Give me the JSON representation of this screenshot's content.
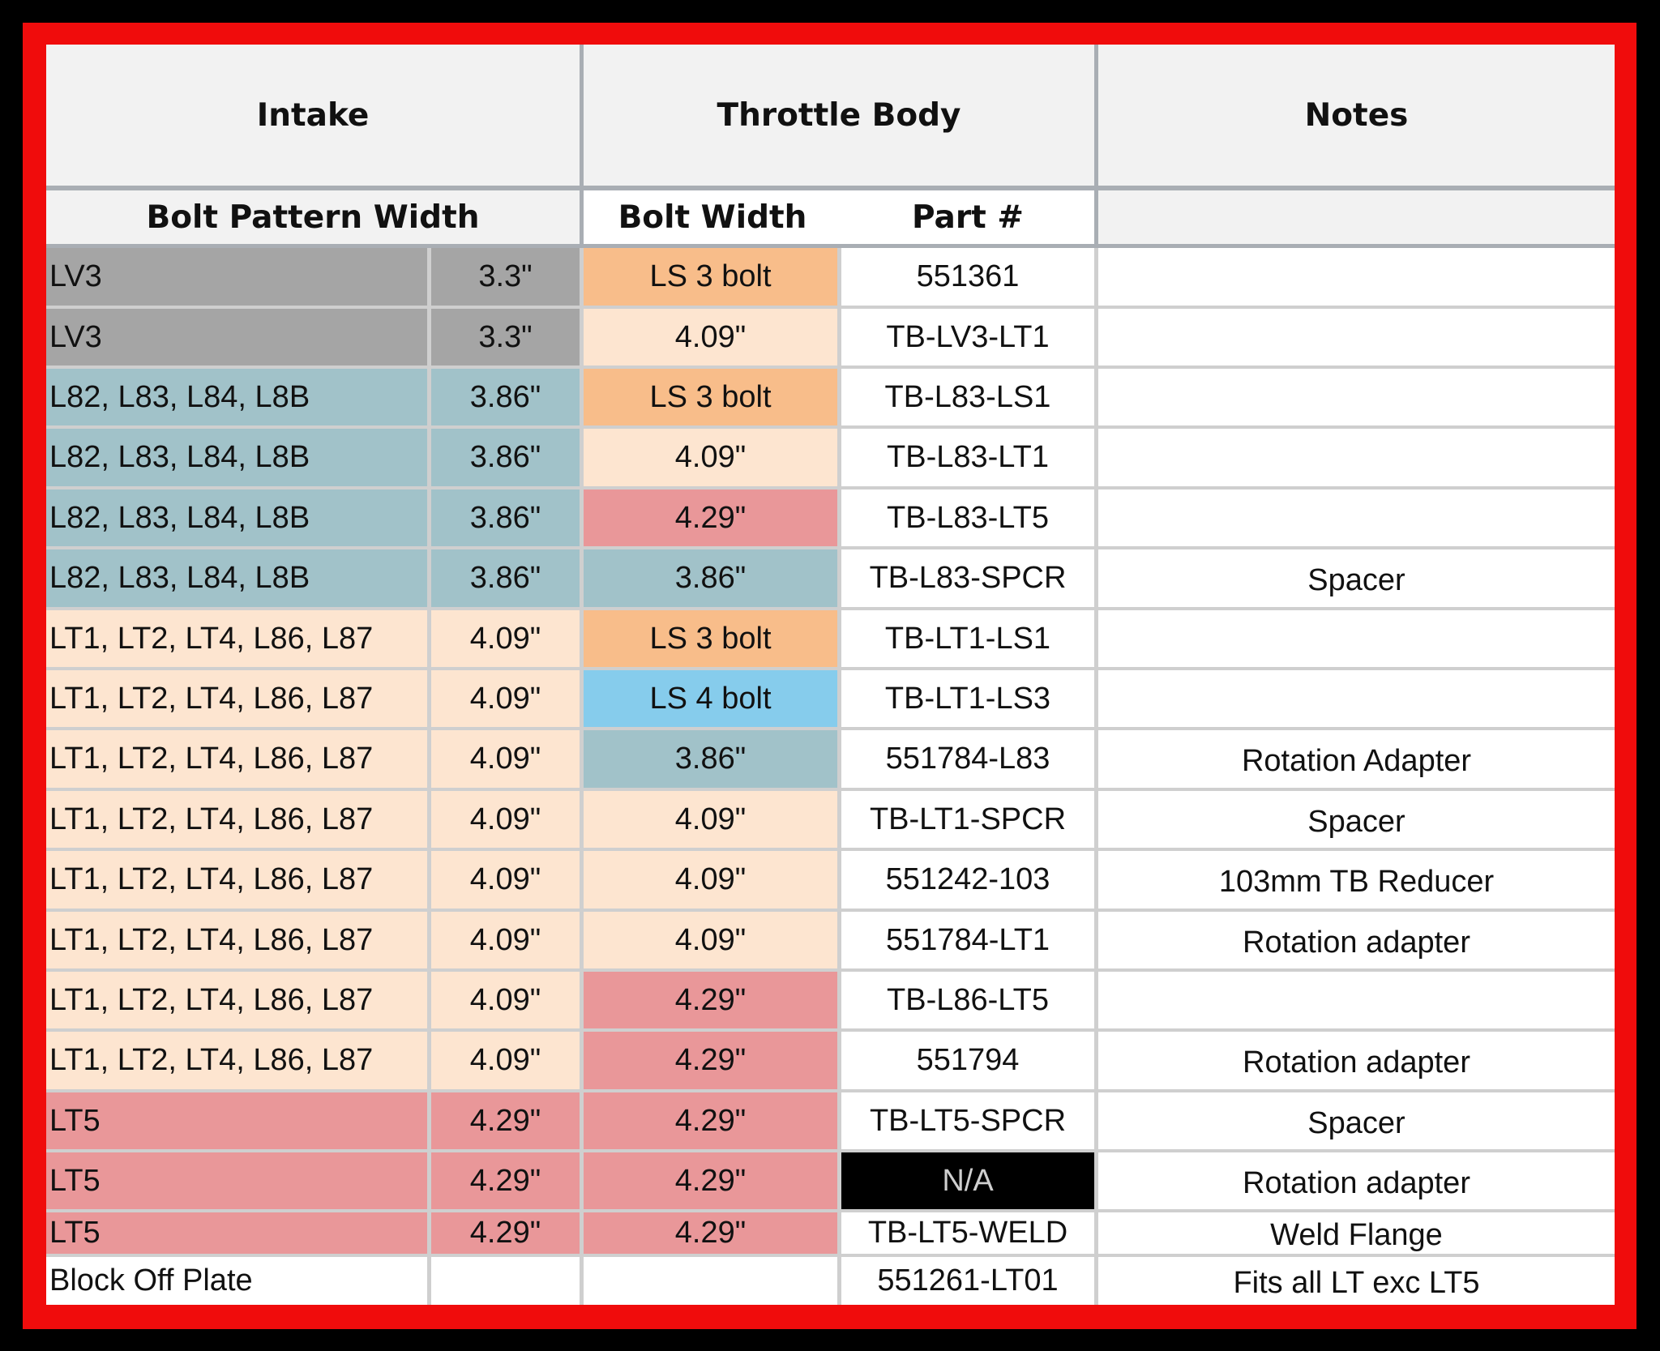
{
  "header": {
    "group_intake": "Intake",
    "group_throttle_body": "Throttle Body",
    "group_notes": "Notes",
    "col_bolt_pattern_width": "Bolt Pattern Width",
    "col_bolt_width": "Bolt Width",
    "col_part_number": "Part #",
    "col_notes_sub": ""
  },
  "colors": {
    "gray": "#a5a5a5",
    "teal": "#a1c2c9",
    "peach": "#fde5d0",
    "orange": "#f8bd8a",
    "red": "#e99799",
    "blue": "#86ccec",
    "white": "#ffffff",
    "black": "#000000"
  },
  "rows": [
    {
      "engine": "LV3",
      "pattern": "3.3\"",
      "bolt": "LS 3 bolt",
      "part": "551361",
      "note": "",
      "engine_color": "gray",
      "bolt_color": "orange",
      "part_color": "white"
    },
    {
      "engine": "LV3",
      "pattern": "3.3\"",
      "bolt": "4.09\"",
      "part": "TB-LV3-LT1",
      "note": "",
      "engine_color": "gray",
      "bolt_color": "peach",
      "part_color": "white"
    },
    {
      "engine": "L82, L83, L84, L8B",
      "pattern": "3.86\"",
      "bolt": "LS 3 bolt",
      "part": "TB-L83-LS1",
      "note": "",
      "engine_color": "teal",
      "bolt_color": "orange",
      "part_color": "white"
    },
    {
      "engine": "L82, L83, L84, L8B",
      "pattern": "3.86\"",
      "bolt": "4.09\"",
      "part": "TB-L83-LT1",
      "note": "",
      "engine_color": "teal",
      "bolt_color": "peach",
      "part_color": "white"
    },
    {
      "engine": "L82, L83, L84, L8B",
      "pattern": "3.86\"",
      "bolt": "4.29\"",
      "part": "TB-L83-LT5",
      "note": "",
      "engine_color": "teal",
      "bolt_color": "red",
      "part_color": "white"
    },
    {
      "engine": "L82, L83, L84, L8B",
      "pattern": "3.86\"",
      "bolt": "3.86\"",
      "part": "TB-L83-SPCR",
      "note": "Spacer",
      "engine_color": "teal",
      "bolt_color": "teal",
      "part_color": "white"
    },
    {
      "engine": "LT1, LT2, LT4, L86, L87",
      "pattern": "4.09\"",
      "bolt": "LS 3 bolt",
      "part": "TB-LT1-LS1",
      "note": "",
      "engine_color": "peach",
      "bolt_color": "orange",
      "part_color": "white"
    },
    {
      "engine": "LT1, LT2, LT4, L86, L87",
      "pattern": "4.09\"",
      "bolt": "LS 4 bolt",
      "part": "TB-LT1-LS3",
      "note": "",
      "engine_color": "peach",
      "bolt_color": "blue",
      "part_color": "white"
    },
    {
      "engine": "LT1, LT2, LT4, L86, L87",
      "pattern": "4.09\"",
      "bolt": "3.86\"",
      "part": "551784-L83",
      "note": "Rotation Adapter",
      "engine_color": "peach",
      "bolt_color": "teal",
      "part_color": "white"
    },
    {
      "engine": "LT1, LT2, LT4, L86, L87",
      "pattern": "4.09\"",
      "bolt": "4.09\"",
      "part": "TB-LT1-SPCR",
      "note": "Spacer",
      "engine_color": "peach",
      "bolt_color": "peach",
      "part_color": "white"
    },
    {
      "engine": "LT1, LT2, LT4, L86, L87",
      "pattern": "4.09\"",
      "bolt": "4.09\"",
      "part": "551242-103",
      "note": "103mm TB Reducer",
      "engine_color": "peach",
      "bolt_color": "peach",
      "part_color": "white"
    },
    {
      "engine": "LT1, LT2, LT4, L86, L87",
      "pattern": "4.09\"",
      "bolt": "4.09\"",
      "part": "551784-LT1",
      "note": "Rotation adapter",
      "engine_color": "peach",
      "bolt_color": "peach",
      "part_color": "white"
    },
    {
      "engine": "LT1, LT2, LT4, L86, L87",
      "pattern": "4.09\"",
      "bolt": "4.29\"",
      "part": "TB-L86-LT5",
      "note": "",
      "engine_color": "peach",
      "bolt_color": "red",
      "part_color": "white"
    },
    {
      "engine": "LT1, LT2, LT4, L86, L87",
      "pattern": "4.09\"",
      "bolt": "4.29\"",
      "part": "551794",
      "note": "Rotation adapter",
      "engine_color": "peach",
      "bolt_color": "red",
      "part_color": "white"
    },
    {
      "engine": "LT5",
      "pattern": "4.29\"",
      "bolt": "4.29\"",
      "part": "TB-LT5-SPCR",
      "note": "Spacer",
      "engine_color": "red",
      "bolt_color": "red",
      "part_color": "white"
    },
    {
      "engine": "LT5",
      "pattern": "4.29\"",
      "bolt": "4.29\"",
      "part": "N/A",
      "note": "Rotation adapter",
      "engine_color": "red",
      "bolt_color": "red",
      "part_color": "black"
    },
    {
      "engine": "LT5",
      "pattern": "4.29\"",
      "bolt": "4.29\"",
      "part": "TB-LT5-WELD",
      "note": "Weld Flange",
      "engine_color": "red",
      "bolt_color": "red",
      "part_color": "white"
    },
    {
      "engine": "Block Off Plate",
      "pattern": "",
      "bolt": "",
      "part": "551261-LT01",
      "note": "Fits all LT exc LT5",
      "engine_color": "white",
      "bolt_color": "white",
      "part_color": "white"
    }
  ]
}
